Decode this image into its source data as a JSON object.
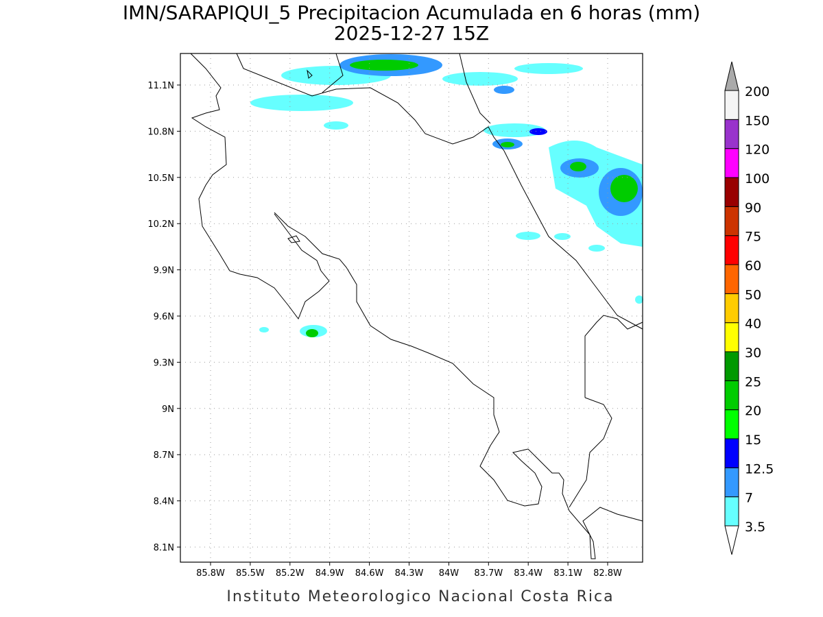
{
  "map": {
    "title": "IMN/SARAPIQUI_5 Precipitacion Acumulada en 6 horas (mm)",
    "subtitle": "2025-12-27 15Z",
    "lat_ticks": [
      "11.1N",
      "10.8N",
      "10.5N",
      "10.2N",
      "9.9N",
      "9.6N",
      "9.3N",
      "9N",
      "8.7N",
      "8.4N",
      "8.1N"
    ],
    "lon_ticks": [
      "85.8W",
      "85.5W",
      "85.2W",
      "84.9W",
      "84.6W",
      "84.3W",
      "84W",
      "83.7W",
      "83.4W",
      "83.1W",
      "82.8W"
    ],
    "colorbar": {
      "levels": [
        3.5,
        7,
        12.5,
        15,
        20,
        25,
        30,
        40,
        50,
        60,
        75,
        90,
        100,
        120,
        150,
        200
      ],
      "colors": [
        "#ffffff",
        "#66ffff",
        "#3399ff",
        "#0000ff",
        "#00ff00",
        "#00cc00",
        "#009900",
        "#ffff00",
        "#ffcc00",
        "#ff6600",
        "#ff0000",
        "#cc3300",
        "#990000",
        "#ff00ff",
        "#9933cc",
        "#f5f5f5",
        "#aaaaaa"
      ]
    },
    "footer": "Instituto Meteorologico Nacional Costa Rica"
  }
}
